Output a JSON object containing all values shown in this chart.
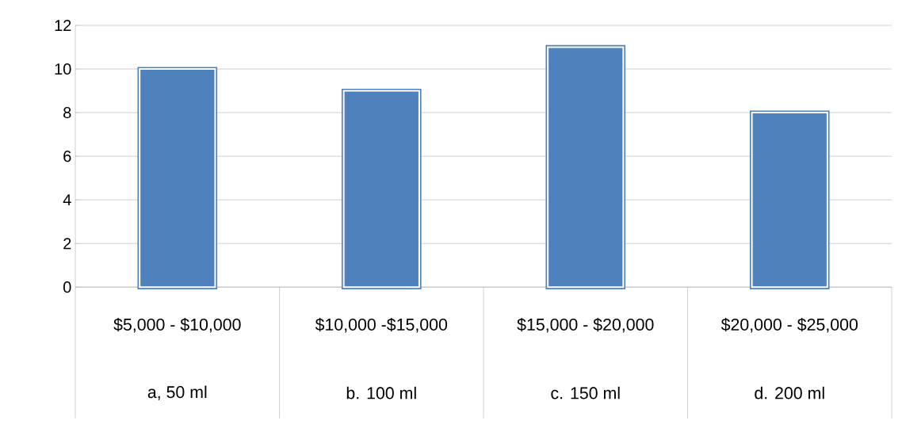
{
  "chart_data": {
    "type": "bar",
    "categories": [
      "$5,000  -  $10,000",
      "$10,000  -$15,000",
      "$15,000  -  $20,000",
      "$20,000  -  $25,000"
    ],
    "annotations": [
      "a, 50 ml",
      "b. 100 ml",
      "c.  150 ml",
      "d. 200 ml"
    ],
    "values": [
      10,
      9,
      11,
      8
    ],
    "color": "#4f81bd",
    "ylim": [
      0,
      12
    ],
    "yticks": [
      0,
      2,
      4,
      6,
      8,
      10,
      12
    ],
    "grid": "y"
  }
}
